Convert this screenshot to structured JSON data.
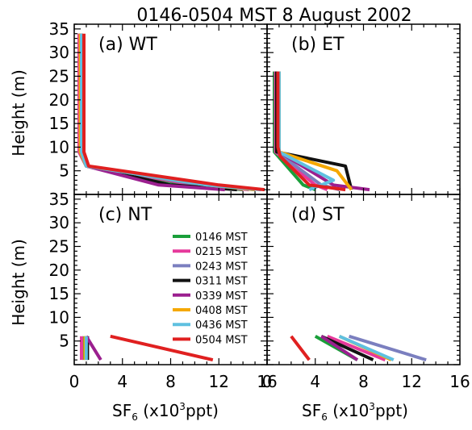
{
  "title": "0146-0504 MST 8 August 2002",
  "ylabel": "Height (m)",
  "xlabel_main": "SF",
  "xlabel_sub": "6",
  "xlabel_open": " (x10",
  "xlabel_sup": "3",
  "xlabel_unit": "ppt)",
  "colors": [
    "#1a9f3a",
    "#e6399b",
    "#7b7fbf",
    "#111111",
    "#9b1f8f",
    "#f5a800",
    "#5fc0e0",
    "#e02020"
  ],
  "legend": [
    "0146 MST",
    "0215 MST",
    "0243 MST",
    "0311 MST",
    "0339 MST",
    "0408 MST",
    "0436 MST",
    "0504 MST"
  ],
  "chart_data": [
    {
      "type": "line",
      "panel_label": "(a) WT",
      "xlim": [
        0,
        16
      ],
      "ylim": [
        0,
        36
      ],
      "xticks": [],
      "yticks": [
        "5",
        "10",
        "15",
        "20",
        "25",
        "30",
        "35"
      ],
      "series": [
        {
          "name": "0146 MST",
          "x": [
            14.0,
            9.5,
            1.0,
            0.4,
            0.4
          ],
          "y": [
            1,
            2,
            6,
            9,
            34
          ]
        },
        {
          "name": "0215 MST",
          "x": [
            14.5,
            10.0,
            1.0,
            0.4,
            0.4
          ],
          "y": [
            1,
            2,
            6,
            9,
            34
          ]
        },
        {
          "name": "0243 MST",
          "x": [
            15.0,
            10.5,
            1.0,
            0.5,
            0.5
          ],
          "y": [
            1,
            2,
            6,
            9,
            34
          ]
        },
        {
          "name": "0311 MST",
          "x": [
            13.5,
            8.0,
            1.0,
            0.6,
            0.6
          ],
          "y": [
            1,
            2,
            6,
            9,
            34
          ]
        },
        {
          "name": "0339 MST",
          "x": [
            12.5,
            7.0,
            1.0,
            0.5,
            0.5
          ],
          "y": [
            1,
            2,
            6,
            9,
            34
          ]
        },
        {
          "name": "0408 MST",
          "x": [
            15.0,
            11.0,
            1.0,
            0.5,
            0.5
          ],
          "y": [
            1,
            2,
            6,
            9,
            34
          ]
        },
        {
          "name": "0436 MST",
          "x": [
            15.5,
            11.0,
            1.0,
            0.6,
            0.6
          ],
          "y": [
            1,
            2,
            6,
            9,
            34
          ]
        },
        {
          "name": "0504 MST",
          "x": [
            15.8,
            12.0,
            1.2,
            0.8,
            0.8
          ],
          "y": [
            1,
            2,
            6,
            9,
            34
          ]
        }
      ]
    },
    {
      "type": "line",
      "panel_label": "(b) ET",
      "xlim": [
        0,
        16
      ],
      "ylim": [
        0,
        36
      ],
      "xticks": [],
      "yticks": [],
      "series": [
        {
          "name": "0146 MST",
          "x": [
            4.0,
            3.0,
            0.6,
            0.6
          ],
          "y": [
            1,
            2,
            9,
            26
          ]
        },
        {
          "name": "0215 MST",
          "x": [
            5.0,
            4.0,
            0.7,
            0.7
          ],
          "y": [
            1,
            2,
            9,
            26
          ]
        },
        {
          "name": "0243 MST",
          "x": [
            6.0,
            4.5,
            0.8,
            0.8
          ],
          "y": [
            1,
            2,
            9,
            26
          ]
        },
        {
          "name": "0311 MST",
          "x": [
            7.0,
            6.5,
            0.8,
            0.8
          ],
          "y": [
            1,
            6,
            9,
            26
          ]
        },
        {
          "name": "0339 MST",
          "x": [
            8.5,
            5.5,
            1.0,
            1.0
          ],
          "y": [
            1,
            2,
            9,
            26
          ]
        },
        {
          "name": "0408 MST",
          "x": [
            7.0,
            5.8,
            1.0,
            1.0
          ],
          "y": [
            1,
            5,
            9,
            26
          ]
        },
        {
          "name": "0436 MST",
          "x": [
            3.5,
            5.5,
            1.0,
            1.0
          ],
          "y": [
            1,
            3,
            9,
            26
          ]
        },
        {
          "name": "0504 MST",
          "x": [
            6.5,
            3.5,
            1.1,
            0.9,
            0.9
          ],
          "y": [
            1,
            2,
            8,
            10,
            26
          ]
        }
      ]
    },
    {
      "type": "line",
      "panel_label": "(c) NT",
      "xlim": [
        0,
        16
      ],
      "ylim": [
        0,
        36
      ],
      "xticks": [
        "0",
        "4",
        "8",
        "12",
        "16"
      ],
      "yticks": [
        "5",
        "10",
        "15",
        "20",
        "25",
        "30",
        "35"
      ],
      "series": [
        {
          "name": "0146 MST",
          "x": [
            0.8,
            0.8
          ],
          "y": [
            1,
            6
          ]
        },
        {
          "name": "0215 MST",
          "x": [
            0.6,
            0.6
          ],
          "y": [
            1,
            6
          ]
        },
        {
          "name": "0243 MST",
          "x": [
            1.0,
            1.0
          ],
          "y": [
            1,
            6
          ]
        },
        {
          "name": "0311 MST",
          "x": [
            1.1,
            1.1
          ],
          "y": [
            1,
            6
          ]
        },
        {
          "name": "0339 MST",
          "x": [
            2.2,
            1.0
          ],
          "y": [
            1,
            6
          ]
        },
        {
          "name": "0408 MST",
          "x": [
            0.9,
            0.9
          ],
          "y": [
            1,
            6
          ]
        },
        {
          "name": "0436 MST",
          "x": [
            1.0,
            1.0
          ],
          "y": [
            1,
            6
          ]
        },
        {
          "name": "0504 MST",
          "x": [
            11.5,
            3.0
          ],
          "y": [
            1,
            6
          ]
        }
      ]
    },
    {
      "type": "line",
      "panel_label": "(d) ST",
      "xlim": [
        0,
        16
      ],
      "ylim": [
        0,
        36
      ],
      "xticks": [
        "0",
        "4",
        "8",
        "12",
        "16"
      ],
      "yticks": [],
      "series": [
        {
          "name": "0146 MST",
          "x": [
            7.5,
            4.0
          ],
          "y": [
            1,
            6
          ]
        },
        {
          "name": "0215 MST",
          "x": [
            9.8,
            5.0
          ],
          "y": [
            1,
            6
          ]
        },
        {
          "name": "0243 MST",
          "x": [
            13.2,
            6.8
          ],
          "y": [
            1,
            6
          ]
        },
        {
          "name": "0311 MST",
          "x": [
            8.8,
            4.5
          ],
          "y": [
            1,
            6
          ]
        },
        {
          "name": "0339 MST",
          "x": [
            7.5,
            4.5
          ],
          "y": [
            1,
            6
          ]
        },
        {
          "name": "0408 MST",
          "x": [
            10.3,
            6.0
          ],
          "y": [
            1,
            6
          ]
        },
        {
          "name": "0436 MST",
          "x": [
            10.5,
            6.0
          ],
          "y": [
            1,
            6
          ]
        },
        {
          "name": "0504 MST",
          "x": [
            3.5,
            2.0
          ],
          "y": [
            1,
            6
          ]
        }
      ]
    }
  ]
}
